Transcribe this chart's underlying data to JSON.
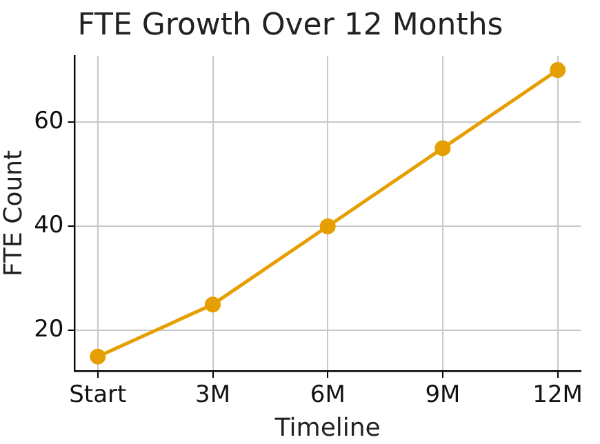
{
  "chart_data": {
    "type": "line",
    "title": "FTE Growth Over 12 Months",
    "xlabel": "Timeline",
    "ylabel": "FTE Count",
    "categories": [
      "Start",
      "3M",
      "6M",
      "9M",
      "12M"
    ],
    "series": [
      {
        "color": "#e69f00",
        "values": [
          15,
          25,
          40,
          55,
          70
        ]
      }
    ],
    "ylim": [
      12.25,
      72.75
    ],
    "yticks": [
      20,
      40,
      60
    ],
    "grid": true,
    "legend": false,
    "marker": "circle",
    "line_style": "solid"
  }
}
